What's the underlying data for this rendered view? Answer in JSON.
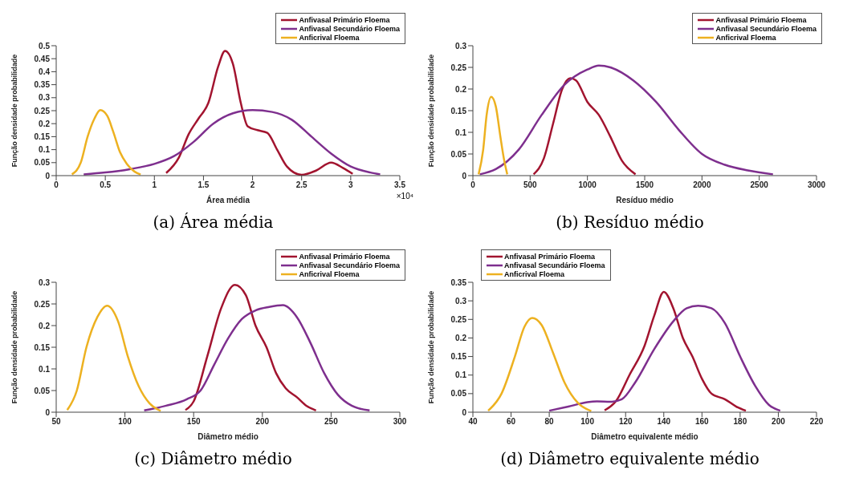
{
  "chart_data": [
    {
      "type": "line",
      "title": "(a) Área média",
      "xlabel": "Área média",
      "ylabel": "Função densidade probabilidade",
      "annotations": [
        "×10⁴"
      ],
      "xlim": [
        0,
        3.5
      ],
      "xticks": [
        0,
        0.5,
        1,
        1.5,
        2,
        2.5,
        3,
        3.5
      ],
      "ylim": [
        0,
        0.5
      ],
      "yticks": [
        0,
        0.05,
        0.1,
        0.15,
        0.2,
        0.25,
        0.3,
        0.35,
        0.4,
        0.45,
        0.5
      ],
      "grid": false,
      "legend": "top right",
      "line_style": "solid",
      "marker": "none",
      "series": [
        {
          "name": "Anfivasal Primário Floema",
          "color": "#a2142f",
          "x": [
            1.12,
            1.25,
            1.35,
            1.45,
            1.55,
            1.65,
            1.72,
            1.8,
            1.88,
            1.95,
            2.05,
            2.15,
            2.25,
            2.35,
            2.5,
            2.65,
            2.8,
            2.92,
            3.02
          ],
          "values": [
            0.01,
            0.07,
            0.16,
            0.22,
            0.28,
            0.42,
            0.48,
            0.43,
            0.28,
            0.19,
            0.175,
            0.165,
            0.1,
            0.035,
            0.003,
            0.02,
            0.05,
            0.03,
            0.007
          ]
        },
        {
          "name": "Anfivasal Secundário Floema",
          "color": "#7e2f8e",
          "x": [
            0.28,
            0.5,
            0.75,
            1.0,
            1.2,
            1.4,
            1.6,
            1.8,
            2.0,
            2.2,
            2.4,
            2.6,
            2.8,
            3.0,
            3.2,
            3.3
          ],
          "values": [
            0.005,
            0.012,
            0.025,
            0.045,
            0.075,
            0.13,
            0.2,
            0.24,
            0.252,
            0.245,
            0.215,
            0.15,
            0.085,
            0.035,
            0.012,
            0.005
          ]
        },
        {
          "name": "Anficrival Floema",
          "color": "#edb120",
          "x": [
            0.16,
            0.25,
            0.32,
            0.39,
            0.45,
            0.52,
            0.58,
            0.65,
            0.72,
            0.8,
            0.86
          ],
          "values": [
            0.005,
            0.05,
            0.15,
            0.22,
            0.252,
            0.23,
            0.17,
            0.09,
            0.045,
            0.015,
            0.004
          ]
        }
      ]
    },
    {
      "type": "line",
      "title": "(b) Resíduo médio",
      "xlabel": "Resíduo médio",
      "ylabel": "Função densidade probabilidade",
      "xlim": [
        0,
        3000
      ],
      "xticks": [
        0,
        500,
        1000,
        1500,
        2000,
        2500,
        3000
      ],
      "ylim": [
        0,
        0.3
      ],
      "yticks": [
        0,
        0.05,
        0.1,
        0.15,
        0.2,
        0.25,
        0.3
      ],
      "grid": false,
      "legend": "top right",
      "line_style": "solid",
      "marker": "none",
      "series": [
        {
          "name": "Anfivasal Primário Floema",
          "color": "#a2142f",
          "x": [
            530,
            620,
            700,
            780,
            850,
            900,
            1000,
            1100,
            1200,
            1300,
            1420
          ],
          "values": [
            0.003,
            0.04,
            0.12,
            0.2,
            0.225,
            0.22,
            0.17,
            0.14,
            0.09,
            0.035,
            0.003
          ]
        },
        {
          "name": "Anfivasal Secundário Floema",
          "color": "#7e2f8e",
          "x": [
            60,
            200,
            400,
            600,
            800,
            1000,
            1100,
            1200,
            1400,
            1600,
            1800,
            2000,
            2200,
            2400,
            2620
          ],
          "values": [
            0.003,
            0.015,
            0.06,
            0.14,
            0.21,
            0.245,
            0.254,
            0.25,
            0.22,
            0.17,
            0.105,
            0.05,
            0.025,
            0.012,
            0.003
          ]
        },
        {
          "name": "Anficrival Floema",
          "color": "#edb120",
          "x": [
            50,
            90,
            120,
            160,
            200,
            240,
            270,
            300
          ],
          "values": [
            0.003,
            0.06,
            0.14,
            0.182,
            0.16,
            0.09,
            0.04,
            0.003
          ]
        }
      ]
    },
    {
      "type": "line",
      "title": "(c) Diâmetro médio",
      "xlabel": "Diâmetro médio",
      "ylabel": "Função densidade probabilidade",
      "xlim": [
        50,
        300
      ],
      "xticks": [
        50,
        100,
        150,
        200,
        250,
        300
      ],
      "ylim": [
        0,
        0.3
      ],
      "yticks": [
        0,
        0.05,
        0.1,
        0.15,
        0.2,
        0.25,
        0.3
      ],
      "grid": false,
      "legend": "top right",
      "line_style": "solid",
      "marker": "none",
      "series": [
        {
          "name": "Anfivasal Primário Floema",
          "color": "#a2142f",
          "x": [
            144,
            150,
            160,
            170,
            180,
            188,
            195,
            203,
            210,
            217,
            225,
            232,
            239
          ],
          "values": [
            0.005,
            0.025,
            0.13,
            0.24,
            0.294,
            0.27,
            0.2,
            0.15,
            0.09,
            0.055,
            0.035,
            0.015,
            0.004
          ]
        },
        {
          "name": "Anfivasal Secundário Floema",
          "color": "#7e2f8e",
          "x": [
            114,
            130,
            145,
            155,
            165,
            175,
            185,
            195,
            205,
            215,
            225,
            235,
            245,
            255,
            265,
            278
          ],
          "values": [
            0.004,
            0.015,
            0.03,
            0.05,
            0.11,
            0.17,
            0.215,
            0.235,
            0.243,
            0.247,
            0.22,
            0.16,
            0.09,
            0.04,
            0.015,
            0.004
          ]
        },
        {
          "name": "Anficrival Floema",
          "color": "#edb120",
          "x": [
            58,
            65,
            72,
            80,
            87,
            95,
            102,
            110,
            118,
            126
          ],
          "values": [
            0.005,
            0.05,
            0.15,
            0.22,
            0.246,
            0.21,
            0.13,
            0.06,
            0.02,
            0.003
          ]
        }
      ]
    },
    {
      "type": "line",
      "title": "(d) Diâmetro equivalente médio",
      "xlabel": "Diâmetro equivalente médio",
      "ylabel": "Função densidade probabilidade",
      "xlim": [
        40,
        220
      ],
      "xticks": [
        40,
        60,
        80,
        100,
        120,
        140,
        160,
        180,
        200,
        220
      ],
      "ylim": [
        0,
        0.35
      ],
      "yticks": [
        0,
        0.05,
        0.1,
        0.15,
        0.2,
        0.25,
        0.3,
        0.35
      ],
      "grid": false,
      "legend": "top left",
      "line_style": "solid",
      "marker": "none",
      "series": [
        {
          "name": "Anfivasal Primário Floema",
          "color": "#a2142f",
          "x": [
            109,
            115,
            122,
            130,
            135,
            140,
            145,
            150,
            155,
            160,
            165,
            172,
            178,
            183
          ],
          "values": [
            0.005,
            0.03,
            0.1,
            0.18,
            0.26,
            0.324,
            0.28,
            0.2,
            0.15,
            0.09,
            0.05,
            0.035,
            0.015,
            0.004
          ]
        },
        {
          "name": "Anfivasal Secundário Floema",
          "color": "#7e2f8e",
          "x": [
            80,
            90,
            100,
            105,
            112,
            118,
            125,
            135,
            145,
            152,
            158,
            165,
            172,
            180,
            188,
            195,
            201
          ],
          "values": [
            0.004,
            0.015,
            0.027,
            0.029,
            0.028,
            0.035,
            0.08,
            0.17,
            0.245,
            0.28,
            0.287,
            0.28,
            0.24,
            0.15,
            0.07,
            0.02,
            0.004
          ]
        },
        {
          "name": "Anficrival Floema",
          "color": "#edb120",
          "x": [
            48,
            55,
            62,
            67,
            71,
            76,
            82,
            88,
            95,
            102
          ],
          "values": [
            0.004,
            0.05,
            0.15,
            0.23,
            0.254,
            0.235,
            0.16,
            0.08,
            0.025,
            0.003
          ]
        }
      ]
    }
  ]
}
